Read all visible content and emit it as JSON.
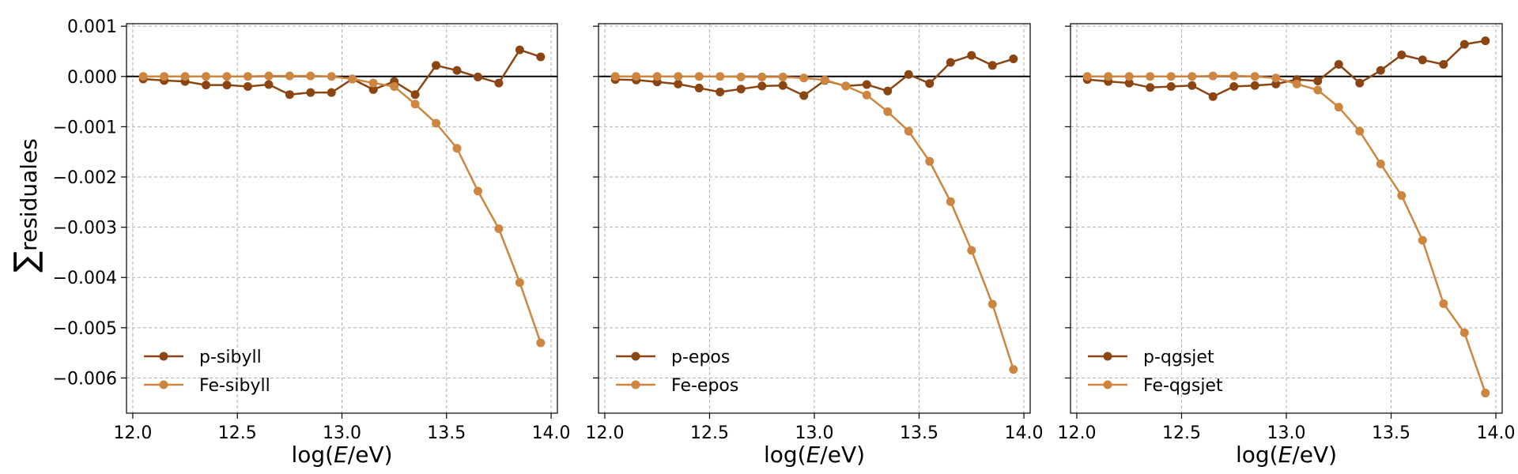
{
  "figure": {
    "ylabel": "∑residuales",
    "ylabel_sum": "∑",
    "ylabel_word": "residuales"
  },
  "colors": {
    "p": "#8B4513",
    "fe": "#CD853F",
    "grid": "#b0b0b0",
    "zero_line": "#000000"
  },
  "chart_data": [
    {
      "type": "line",
      "xlabel": "log(E/eV)",
      "xlabel_parts": {
        "pre": "log(",
        "italic": "E",
        "post": "/eV)"
      },
      "xlim": [
        11.97,
        14.03
      ],
      "ylim": [
        -0.0067,
        0.00105
      ],
      "xticks": [
        "12.0",
        "12.5",
        "13.0",
        "13.5",
        "14.0"
      ],
      "yticks": [
        "0.001",
        "0.000",
        "−0.001",
        "−0.002",
        "−0.003",
        "−0.004",
        "−0.005",
        "−0.006"
      ],
      "grid": true,
      "legend_position": "lower-left",
      "x": [
        12.05,
        12.15,
        12.25,
        12.35,
        12.45,
        12.55,
        12.65,
        12.75,
        12.85,
        12.95,
        13.05,
        13.15,
        13.25,
        13.35,
        13.45,
        13.55,
        13.65,
        13.75,
        13.85,
        13.95
      ],
      "series": [
        {
          "name": "p-sibyll",
          "values": [
            -5e-05,
            -8e-05,
            -0.0001,
            -0.00017,
            -0.00017,
            -0.0002,
            -0.00016,
            -0.00036,
            -0.00032,
            -0.00032,
            -5e-05,
            -0.00026,
            -0.0001,
            -0.00036,
            0.00022,
            0.00012,
            -1e-05,
            -0.00013,
            0.00053,
            0.00039
          ]
        },
        {
          "name": "Fe-sibyll",
          "values": [
            0.0,
            0.0,
            0.0,
            0.0,
            0.0,
            0.0,
            1e-05,
            1e-05,
            1e-05,
            0.0,
            -5e-05,
            -0.00013,
            -0.0002,
            -0.00055,
            -0.00093,
            -0.00143,
            -0.00228,
            -0.00303,
            -0.0041,
            -0.0053
          ]
        }
      ]
    },
    {
      "type": "line",
      "xlabel": "log(E/eV)",
      "xlabel_parts": {
        "pre": "log(",
        "italic": "E",
        "post": "/eV)"
      },
      "xlim": [
        11.97,
        14.03
      ],
      "ylim": [
        -0.0067,
        0.00105
      ],
      "xticks": [
        "12.0",
        "12.5",
        "13.0",
        "13.5",
        "14.0"
      ],
      "yticks": [
        "0.001",
        "0.000",
        "−0.001",
        "−0.002",
        "−0.003",
        "−0.004",
        "−0.005",
        "−0.006"
      ],
      "grid": true,
      "legend_position": "lower-left",
      "x": [
        12.05,
        12.15,
        12.25,
        12.35,
        12.45,
        12.55,
        12.65,
        12.75,
        12.85,
        12.95,
        13.05,
        13.15,
        13.25,
        13.35,
        13.45,
        13.55,
        13.65,
        13.75,
        13.85,
        13.95
      ],
      "series": [
        {
          "name": "p-epos",
          "values": [
            -6e-05,
            -7e-05,
            -0.00011,
            -0.00015,
            -0.00023,
            -0.00031,
            -0.00025,
            -0.00019,
            -0.00018,
            -0.00038,
            -8e-05,
            -0.00019,
            -0.00016,
            -0.00029,
            4e-05,
            -0.00014,
            0.00028,
            0.00042,
            0.00022,
            0.00035
          ]
        },
        {
          "name": "Fe-epos",
          "values": [
            0.0,
            0.0,
            0.0,
            0.0,
            0.0,
            0.0,
            -1e-05,
            -1e-05,
            -1e-05,
            -3e-05,
            -7e-05,
            -0.00019,
            -0.00037,
            -0.0007,
            -0.00109,
            -0.00169,
            -0.00249,
            -0.00346,
            -0.00453,
            -0.00583
          ]
        }
      ]
    },
    {
      "type": "line",
      "xlabel": "log(E/eV)",
      "xlabel_parts": {
        "pre": "log(",
        "italic": "E",
        "post": "/eV)"
      },
      "xlim": [
        11.97,
        14.03
      ],
      "ylim": [
        -0.0067,
        0.00105
      ],
      "xticks": [
        "12.0",
        "12.5",
        "13.0",
        "13.5",
        "14.0"
      ],
      "yticks": [
        "0.001",
        "0.000",
        "−0.001",
        "−0.002",
        "−0.003",
        "−0.004",
        "−0.005",
        "−0.006"
      ],
      "grid": true,
      "legend_position": "lower-left",
      "x": [
        12.05,
        12.15,
        12.25,
        12.35,
        12.45,
        12.55,
        12.65,
        12.75,
        12.85,
        12.95,
        13.05,
        13.15,
        13.25,
        13.35,
        13.45,
        13.55,
        13.65,
        13.75,
        13.85,
        13.95
      ],
      "series": [
        {
          "name": "p-qgsjet",
          "values": [
            -6e-05,
            -0.0001,
            -0.00013,
            -0.00022,
            -0.0002,
            -0.00018,
            -0.0004,
            -0.0002,
            -0.00018,
            -0.00015,
            -6e-05,
            -9e-05,
            0.00024,
            -0.00013,
            0.00012,
            0.00043,
            0.00033,
            0.00024,
            0.00064,
            0.00071
          ]
        },
        {
          "name": "Fe-qgsjet",
          "values": [
            0.0,
            0.0,
            0.0,
            0.0,
            0.0,
            0.0,
            1e-05,
            1e-05,
            0.0,
            -3e-05,
            -0.00015,
            -0.00027,
            -0.00061,
            -0.00109,
            -0.00174,
            -0.00237,
            -0.00326,
            -0.00452,
            -0.0051,
            -0.0063
          ]
        }
      ]
    }
  ]
}
